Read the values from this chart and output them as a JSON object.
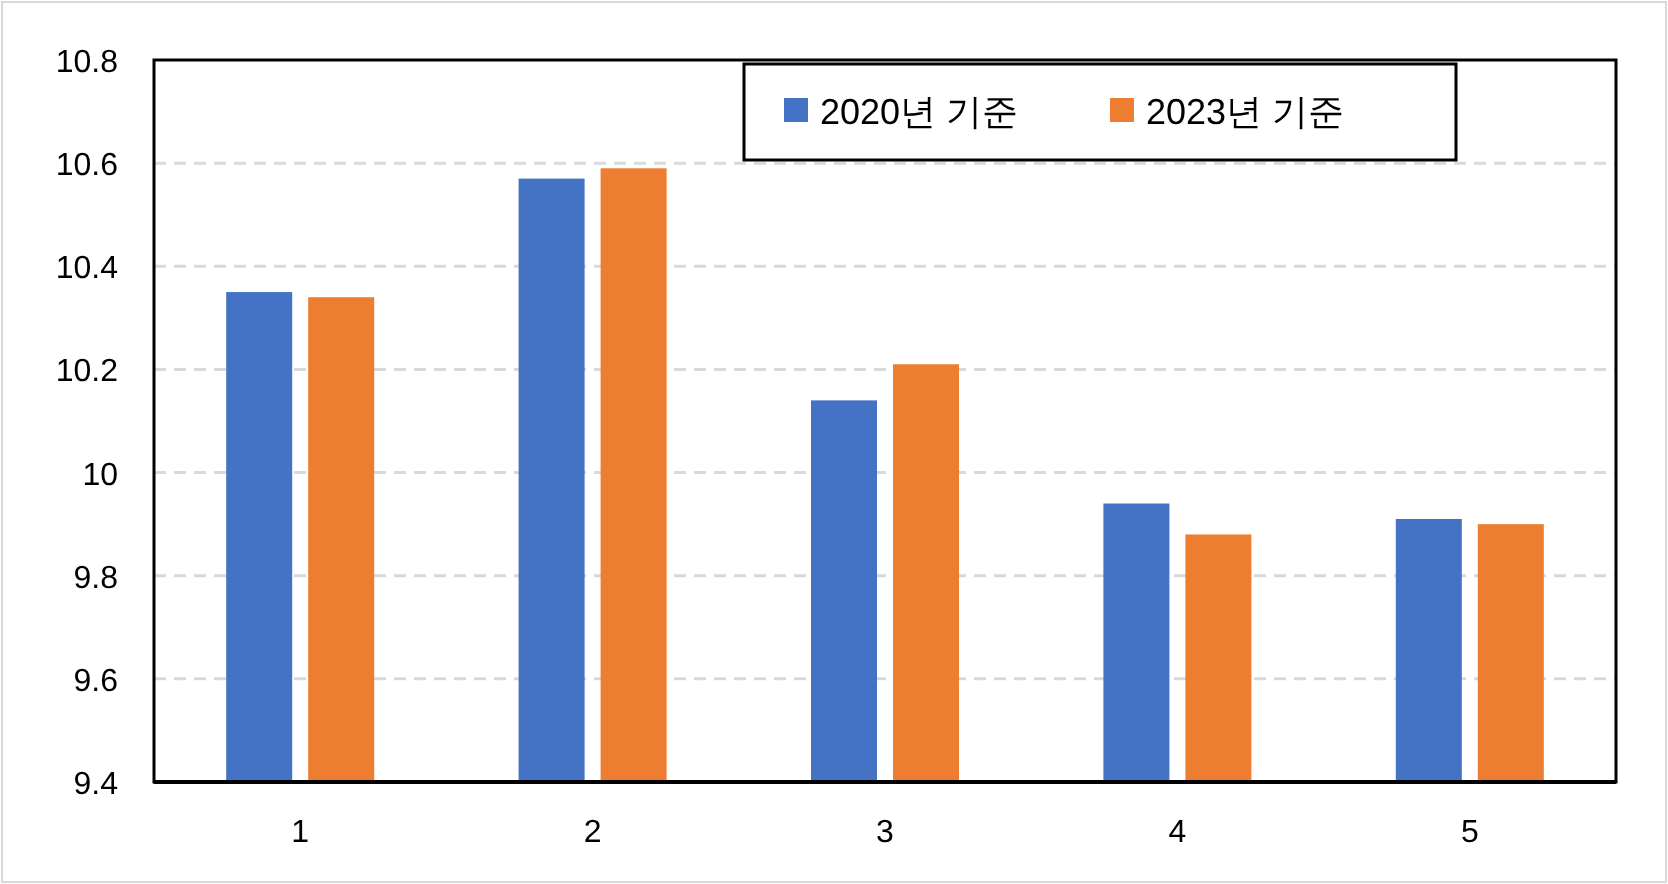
{
  "chart_data": {
    "type": "bar",
    "categories": [
      "1",
      "2",
      "3",
      "4",
      "5"
    ],
    "series": [
      {
        "name": "2020년 기준",
        "color": "#4472c4",
        "values": [
          10.35,
          10.57,
          10.14,
          9.94,
          9.91
        ]
      },
      {
        "name": "2023년 기준",
        "color": "#ed7d31",
        "values": [
          10.34,
          10.59,
          10.21,
          9.88,
          9.9
        ]
      }
    ],
    "ylim": [
      9.4,
      10.8
    ],
    "yticks": [
      9.4,
      9.6,
      9.8,
      10,
      10.2,
      10.4,
      10.6,
      10.8
    ],
    "grid": "y",
    "legend": "top right"
  }
}
